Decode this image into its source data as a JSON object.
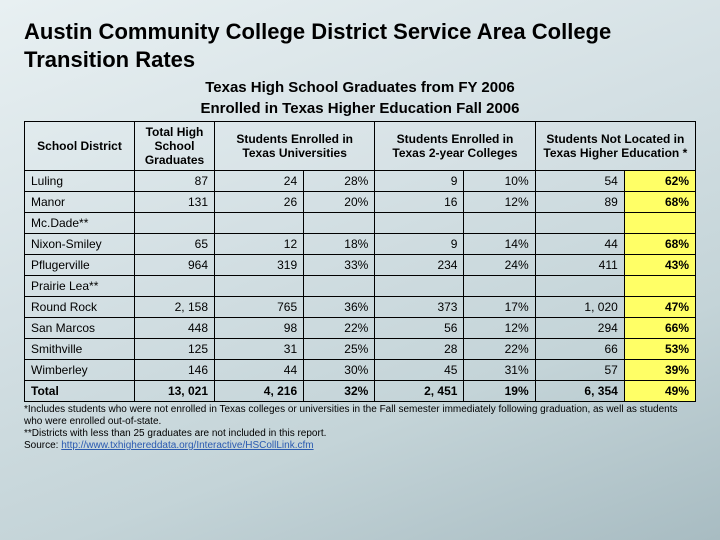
{
  "title": "Austin Community College District Service Area College Transition Rates",
  "subtitle_l1": "Texas High School Graduates from FY 2006",
  "subtitle_l2": "Enrolled in Texas Higher Education Fall 2006",
  "headers": {
    "district": "School District",
    "total_grads": "Total High School Graduates",
    "univ": "Students Enrolled in Texas Universities",
    "twoyr": "Students Enrolled in Texas 2-year Colleges",
    "notloc": "Students Not Located in Texas Higher Education *"
  },
  "rows": [
    {
      "name": "Luling",
      "grads": "87",
      "u_n": "24",
      "u_p": "28%",
      "c_n": "9",
      "c_p": "10%",
      "nl_n": "54",
      "nl_p": "62%",
      "blank": false
    },
    {
      "name": "Manor",
      "grads": "131",
      "u_n": "26",
      "u_p": "20%",
      "c_n": "16",
      "c_p": "12%",
      "nl_n": "89",
      "nl_p": "68%",
      "blank": false
    },
    {
      "name": "Mc.Dade**",
      "blank": true
    },
    {
      "name": "Nixon-Smiley",
      "grads": "65",
      "u_n": "12",
      "u_p": "18%",
      "c_n": "9",
      "c_p": "14%",
      "nl_n": "44",
      "nl_p": "68%",
      "blank": false
    },
    {
      "name": "Pflugerville",
      "grads": "964",
      "u_n": "319",
      "u_p": "33%",
      "c_n": "234",
      "c_p": "24%",
      "nl_n": "411",
      "nl_p": "43%",
      "blank": false
    },
    {
      "name": "Prairie Lea**",
      "blank": true
    },
    {
      "name": "Round Rock",
      "grads": "2, 158",
      "u_n": "765",
      "u_p": "36%",
      "c_n": "373",
      "c_p": "17%",
      "nl_n": "1, 020",
      "nl_p": "47%",
      "blank": false
    },
    {
      "name": "San Marcos",
      "grads": "448",
      "u_n": "98",
      "u_p": "22%",
      "c_n": "56",
      "c_p": "12%",
      "nl_n": "294",
      "nl_p": "66%",
      "blank": false
    },
    {
      "name": "Smithville",
      "grads": "125",
      "u_n": "31",
      "u_p": "25%",
      "c_n": "28",
      "c_p": "22%",
      "nl_n": "66",
      "nl_p": "53%",
      "blank": false
    },
    {
      "name": "Wimberley",
      "grads": "146",
      "u_n": "44",
      "u_p": "30%",
      "c_n": "45",
      "c_p": "31%",
      "nl_n": "57",
      "nl_p": "39%",
      "blank": false
    }
  ],
  "total": {
    "name": "Total",
    "grads": "13, 021",
    "u_n": "4, 216",
    "u_p": "32%",
    "c_n": "2, 451",
    "c_p": "19%",
    "nl_n": "6, 354",
    "nl_p": "49%"
  },
  "foot1": "*Includes students who were not enrolled in Texas colleges or universities in the Fall semester immediately following graduation, as well as students who were enrolled out-of-state.",
  "foot2": "**Districts with less than 25 graduates are not included in this report.",
  "foot3_label": " Source: ",
  "foot3_link": "http://www.txhighereddata.org/Interactive/HSCollLink.cfm",
  "colors": {
    "highlight": "#ffff66",
    "link": "#2a5ab0"
  }
}
